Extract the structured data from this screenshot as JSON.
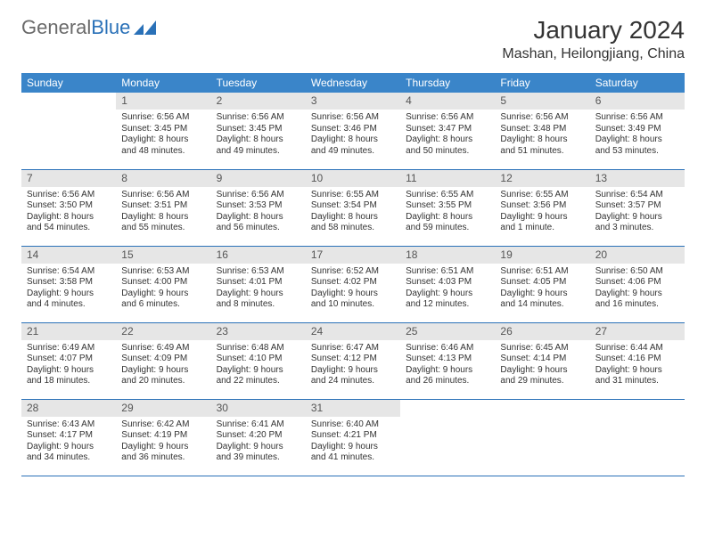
{
  "brand": {
    "part1": "General",
    "part2": "Blue",
    "color1": "#6a6a6a",
    "color2": "#2a71b8"
  },
  "title": "January 2024",
  "location": "Mashan, Heilongjiang, China",
  "header_bg": "#3a85c9",
  "header_fg": "#ffffff",
  "daynum_bg": "#e6e6e6",
  "rule_color": "#2a71b8",
  "weekdays": [
    "Sunday",
    "Monday",
    "Tuesday",
    "Wednesday",
    "Thursday",
    "Friday",
    "Saturday"
  ],
  "weeks": [
    [
      null,
      {
        "n": "1",
        "sr": "Sunrise: 6:56 AM",
        "ss": "Sunset: 3:45 PM",
        "d1": "Daylight: 8 hours",
        "d2": "and 48 minutes."
      },
      {
        "n": "2",
        "sr": "Sunrise: 6:56 AM",
        "ss": "Sunset: 3:45 PM",
        "d1": "Daylight: 8 hours",
        "d2": "and 49 minutes."
      },
      {
        "n": "3",
        "sr": "Sunrise: 6:56 AM",
        "ss": "Sunset: 3:46 PM",
        "d1": "Daylight: 8 hours",
        "d2": "and 49 minutes."
      },
      {
        "n": "4",
        "sr": "Sunrise: 6:56 AM",
        "ss": "Sunset: 3:47 PM",
        "d1": "Daylight: 8 hours",
        "d2": "and 50 minutes."
      },
      {
        "n": "5",
        "sr": "Sunrise: 6:56 AM",
        "ss": "Sunset: 3:48 PM",
        "d1": "Daylight: 8 hours",
        "d2": "and 51 minutes."
      },
      {
        "n": "6",
        "sr": "Sunrise: 6:56 AM",
        "ss": "Sunset: 3:49 PM",
        "d1": "Daylight: 8 hours",
        "d2": "and 53 minutes."
      }
    ],
    [
      {
        "n": "7",
        "sr": "Sunrise: 6:56 AM",
        "ss": "Sunset: 3:50 PM",
        "d1": "Daylight: 8 hours",
        "d2": "and 54 minutes."
      },
      {
        "n": "8",
        "sr": "Sunrise: 6:56 AM",
        "ss": "Sunset: 3:51 PM",
        "d1": "Daylight: 8 hours",
        "d2": "and 55 minutes."
      },
      {
        "n": "9",
        "sr": "Sunrise: 6:56 AM",
        "ss": "Sunset: 3:53 PM",
        "d1": "Daylight: 8 hours",
        "d2": "and 56 minutes."
      },
      {
        "n": "10",
        "sr": "Sunrise: 6:55 AM",
        "ss": "Sunset: 3:54 PM",
        "d1": "Daylight: 8 hours",
        "d2": "and 58 minutes."
      },
      {
        "n": "11",
        "sr": "Sunrise: 6:55 AM",
        "ss": "Sunset: 3:55 PM",
        "d1": "Daylight: 8 hours",
        "d2": "and 59 minutes."
      },
      {
        "n": "12",
        "sr": "Sunrise: 6:55 AM",
        "ss": "Sunset: 3:56 PM",
        "d1": "Daylight: 9 hours",
        "d2": "and 1 minute."
      },
      {
        "n": "13",
        "sr": "Sunrise: 6:54 AM",
        "ss": "Sunset: 3:57 PM",
        "d1": "Daylight: 9 hours",
        "d2": "and 3 minutes."
      }
    ],
    [
      {
        "n": "14",
        "sr": "Sunrise: 6:54 AM",
        "ss": "Sunset: 3:58 PM",
        "d1": "Daylight: 9 hours",
        "d2": "and 4 minutes."
      },
      {
        "n": "15",
        "sr": "Sunrise: 6:53 AM",
        "ss": "Sunset: 4:00 PM",
        "d1": "Daylight: 9 hours",
        "d2": "and 6 minutes."
      },
      {
        "n": "16",
        "sr": "Sunrise: 6:53 AM",
        "ss": "Sunset: 4:01 PM",
        "d1": "Daylight: 9 hours",
        "d2": "and 8 minutes."
      },
      {
        "n": "17",
        "sr": "Sunrise: 6:52 AM",
        "ss": "Sunset: 4:02 PM",
        "d1": "Daylight: 9 hours",
        "d2": "and 10 minutes."
      },
      {
        "n": "18",
        "sr": "Sunrise: 6:51 AM",
        "ss": "Sunset: 4:03 PM",
        "d1": "Daylight: 9 hours",
        "d2": "and 12 minutes."
      },
      {
        "n": "19",
        "sr": "Sunrise: 6:51 AM",
        "ss": "Sunset: 4:05 PM",
        "d1": "Daylight: 9 hours",
        "d2": "and 14 minutes."
      },
      {
        "n": "20",
        "sr": "Sunrise: 6:50 AM",
        "ss": "Sunset: 4:06 PM",
        "d1": "Daylight: 9 hours",
        "d2": "and 16 minutes."
      }
    ],
    [
      {
        "n": "21",
        "sr": "Sunrise: 6:49 AM",
        "ss": "Sunset: 4:07 PM",
        "d1": "Daylight: 9 hours",
        "d2": "and 18 minutes."
      },
      {
        "n": "22",
        "sr": "Sunrise: 6:49 AM",
        "ss": "Sunset: 4:09 PM",
        "d1": "Daylight: 9 hours",
        "d2": "and 20 minutes."
      },
      {
        "n": "23",
        "sr": "Sunrise: 6:48 AM",
        "ss": "Sunset: 4:10 PM",
        "d1": "Daylight: 9 hours",
        "d2": "and 22 minutes."
      },
      {
        "n": "24",
        "sr": "Sunrise: 6:47 AM",
        "ss": "Sunset: 4:12 PM",
        "d1": "Daylight: 9 hours",
        "d2": "and 24 minutes."
      },
      {
        "n": "25",
        "sr": "Sunrise: 6:46 AM",
        "ss": "Sunset: 4:13 PM",
        "d1": "Daylight: 9 hours",
        "d2": "and 26 minutes."
      },
      {
        "n": "26",
        "sr": "Sunrise: 6:45 AM",
        "ss": "Sunset: 4:14 PM",
        "d1": "Daylight: 9 hours",
        "d2": "and 29 minutes."
      },
      {
        "n": "27",
        "sr": "Sunrise: 6:44 AM",
        "ss": "Sunset: 4:16 PM",
        "d1": "Daylight: 9 hours",
        "d2": "and 31 minutes."
      }
    ],
    [
      {
        "n": "28",
        "sr": "Sunrise: 6:43 AM",
        "ss": "Sunset: 4:17 PM",
        "d1": "Daylight: 9 hours",
        "d2": "and 34 minutes."
      },
      {
        "n": "29",
        "sr": "Sunrise: 6:42 AM",
        "ss": "Sunset: 4:19 PM",
        "d1": "Daylight: 9 hours",
        "d2": "and 36 minutes."
      },
      {
        "n": "30",
        "sr": "Sunrise: 6:41 AM",
        "ss": "Sunset: 4:20 PM",
        "d1": "Daylight: 9 hours",
        "d2": "and 39 minutes."
      },
      {
        "n": "31",
        "sr": "Sunrise: 6:40 AM",
        "ss": "Sunset: 4:21 PM",
        "d1": "Daylight: 9 hours",
        "d2": "and 41 minutes."
      },
      null,
      null,
      null
    ]
  ]
}
